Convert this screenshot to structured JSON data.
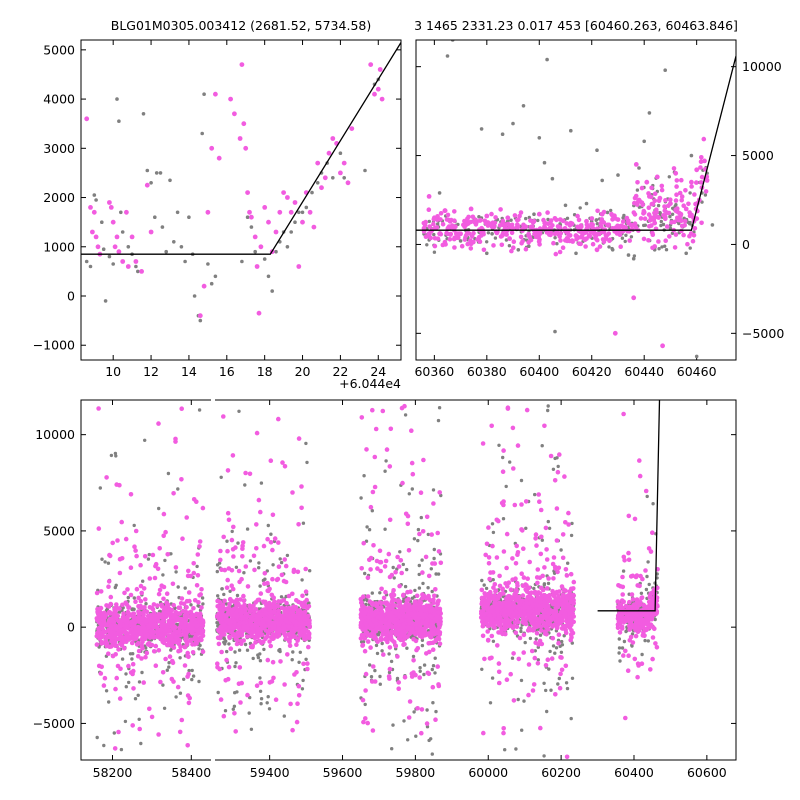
{
  "colors": {
    "grey_points": "#808080",
    "magenta_points": "#f25ce0",
    "model_line": "#000000"
  },
  "chart_data": [
    {
      "name": "phased-zoom",
      "type": "scatter",
      "title": "BLG01M0305.003412 (2681.52, 5734.58)",
      "offset_label": "+6.044e4",
      "xlim": [
        8.3,
        25.2
      ],
      "ylim": [
        -1300,
        5200
      ],
      "xticks": [
        10,
        12,
        14,
        16,
        18,
        20,
        22,
        24
      ],
      "yticks": [
        -1000,
        0,
        1000,
        2000,
        3000,
        4000,
        5000
      ],
      "model_line": {
        "x": [
          8.3,
          18.3,
          25.2
        ],
        "y": [
          850,
          850,
          5150
        ]
      },
      "points_grey": [
        [
          8.6,
          700
        ],
        [
          8.8,
          600
        ],
        [
          9.0,
          2050
        ],
        [
          9.1,
          1950
        ],
        [
          9.4,
          1500
        ],
        [
          9.5,
          950
        ],
        [
          9.6,
          -100
        ],
        [
          9.8,
          800
        ],
        [
          10.0,
          650
        ],
        [
          10.2,
          4000
        ],
        [
          10.3,
          3550
        ],
        [
          10.4,
          1700
        ],
        [
          10.5,
          1300
        ],
        [
          10.8,
          1000
        ],
        [
          11.0,
          850
        ],
        [
          11.2,
          600
        ],
        [
          11.3,
          500
        ],
        [
          11.6,
          3700
        ],
        [
          11.8,
          2550
        ],
        [
          12.0,
          2300
        ],
        [
          12.2,
          1600
        ],
        [
          12.3,
          2500
        ],
        [
          12.5,
          2500
        ],
        [
          12.6,
          1400
        ],
        [
          12.8,
          900
        ],
        [
          13.0,
          2350
        ],
        [
          13.2,
          1100
        ],
        [
          13.4,
          1700
        ],
        [
          13.6,
          1000
        ],
        [
          13.8,
          700
        ],
        [
          14.0,
          1600
        ],
        [
          14.2,
          850
        ],
        [
          14.3,
          0
        ],
        [
          14.5,
          -400
        ],
        [
          14.6,
          -500
        ],
        [
          14.7,
          3300
        ],
        [
          14.8,
          4100
        ],
        [
          15.0,
          650
        ],
        [
          15.2,
          250
        ],
        [
          15.4,
          400
        ],
        [
          16.8,
          700
        ],
        [
          17.1,
          1600
        ],
        [
          17.3,
          1400
        ],
        [
          17.5,
          900
        ],
        [
          17.8,
          1000
        ],
        [
          18.0,
          750
        ],
        [
          18.2,
          400
        ],
        [
          18.4,
          100
        ],
        [
          18.6,
          900
        ],
        [
          18.8,
          1100
        ],
        [
          19.0,
          1300
        ],
        [
          19.2,
          1000
        ],
        [
          19.4,
          1300
        ],
        [
          19.6,
          1500
        ],
        [
          19.8,
          1700
        ],
        [
          20.0,
          1700
        ],
        [
          20.2,
          1800
        ],
        [
          20.5,
          2100
        ],
        [
          20.8,
          2300
        ],
        [
          21.0,
          2500
        ],
        [
          21.3,
          2700
        ],
        [
          21.6,
          2400
        ],
        [
          22.0,
          2900
        ],
        [
          22.2,
          2400
        ],
        [
          23.3,
          2550
        ],
        [
          23.8,
          4300
        ],
        [
          24.0,
          4400
        ]
      ],
      "points_magenta": [
        [
          8.6,
          3600
        ],
        [
          8.8,
          1800
        ],
        [
          8.9,
          1300
        ],
        [
          9.0,
          1700
        ],
        [
          9.1,
          1200
        ],
        [
          9.2,
          1000
        ],
        [
          9.3,
          850
        ],
        [
          9.8,
          1900
        ],
        [
          9.9,
          1800
        ],
        [
          10.0,
          1500
        ],
        [
          10.1,
          1000
        ],
        [
          10.2,
          1200
        ],
        [
          10.3,
          900
        ],
        [
          10.5,
          700
        ],
        [
          10.7,
          1700
        ],
        [
          10.8,
          600
        ],
        [
          11.0,
          1200
        ],
        [
          11.2,
          700
        ],
        [
          11.5,
          500
        ],
        [
          11.8,
          2250
        ],
        [
          12.0,
          1300
        ],
        [
          14.6,
          -400
        ],
        [
          14.8,
          200
        ],
        [
          15.0,
          1700
        ],
        [
          15.2,
          3000
        ],
        [
          15.4,
          4100
        ],
        [
          15.6,
          2800
        ],
        [
          16.2,
          4000
        ],
        [
          16.4,
          3700
        ],
        [
          16.7,
          3200
        ],
        [
          16.8,
          4700
        ],
        [
          16.9,
          3500
        ],
        [
          17.0,
          3000
        ],
        [
          17.1,
          2100
        ],
        [
          17.2,
          1700
        ],
        [
          17.3,
          1600
        ],
        [
          17.5,
          1200
        ],
        [
          17.6,
          600
        ],
        [
          17.7,
          -350
        ],
        [
          17.8,
          1000
        ],
        [
          18.0,
          1800
        ],
        [
          18.2,
          1500
        ],
        [
          18.4,
          900
        ],
        [
          18.6,
          1300
        ],
        [
          18.8,
          1700
        ],
        [
          19.0,
          2100
        ],
        [
          19.2,
          2000
        ],
        [
          19.4,
          1700
        ],
        [
          19.6,
          1900
        ],
        [
          19.8,
          600
        ],
        [
          20.0,
          1500
        ],
        [
          20.2,
          2100
        ],
        [
          20.4,
          1700
        ],
        [
          20.6,
          1400
        ],
        [
          20.8,
          2700
        ],
        [
          21.0,
          2200
        ],
        [
          21.2,
          2400
        ],
        [
          21.4,
          2900
        ],
        [
          21.6,
          3200
        ],
        [
          21.8,
          3100
        ],
        [
          22.0,
          2500
        ],
        [
          22.2,
          2700
        ],
        [
          22.4,
          2300
        ],
        [
          22.6,
          3400
        ],
        [
          23.6,
          4700
        ],
        [
          23.8,
          4100
        ],
        [
          24.0,
          4200
        ],
        [
          24.1,
          4600
        ],
        [
          24.2,
          4000
        ]
      ]
    },
    {
      "name": "season-zoom",
      "type": "scatter",
      "title": "3 1465 2331.23 0.017 453 [60460.263, 60463.846]",
      "xlim": [
        60353,
        60475
      ],
      "ylim": [
        -6500,
        11500
      ],
      "xticks": [
        60360,
        60380,
        60400,
        60420,
        60440,
        60460
      ],
      "yticks": [
        -5000,
        0,
        5000,
        10000
      ],
      "yaxis_side": "right",
      "model_line": {
        "x": [
          60353,
          60458,
          60475
        ],
        "y": [
          800,
          800,
          10600
        ]
      },
      "points_grey": [
        [
          60358,
          500
        ],
        [
          60362,
          2900
        ],
        [
          60365,
          10600
        ],
        [
          60367,
          11500
        ],
        [
          60370,
          200
        ],
        [
          60372,
          800
        ],
        [
          60375,
          1500
        ],
        [
          60378,
          6500
        ],
        [
          60380,
          -500
        ],
        [
          60382,
          600
        ],
        [
          60384,
          1400
        ],
        [
          60386,
          6200
        ],
        [
          60388,
          1300
        ],
        [
          60390,
          6800
        ],
        [
          60392,
          -300
        ],
        [
          60394,
          7800
        ],
        [
          60396,
          -100
        ],
        [
          60398,
          1700
        ],
        [
          60400,
          6000
        ],
        [
          60402,
          4600
        ],
        [
          60403,
          10400
        ],
        [
          60405,
          3700
        ],
        [
          60406,
          -4900
        ],
        [
          60408,
          1100
        ],
        [
          60410,
          2200
        ],
        [
          60412,
          6400
        ],
        [
          60414,
          -500
        ],
        [
          60416,
          1000
        ],
        [
          60418,
          2300
        ],
        [
          60420,
          1300
        ],
        [
          60422,
          5300
        ],
        [
          60424,
          3600
        ],
        [
          60426,
          1800
        ],
        [
          60428,
          -300
        ],
        [
          60430,
          3900
        ],
        [
          60432,
          1500
        ],
        [
          60434,
          -600
        ],
        [
          60436,
          -800
        ],
        [
          60438,
          4300
        ],
        [
          60440,
          5800
        ],
        [
          60442,
          7400
        ],
        [
          60444,
          -300
        ],
        [
          60446,
          1600
        ],
        [
          60448,
          9800
        ],
        [
          60450,
          900
        ],
        [
          60452,
          1300
        ],
        [
          60454,
          1600
        ],
        [
          60456,
          -500
        ],
        [
          60458,
          5000
        ],
        [
          60460,
          -6300
        ],
        [
          60462,
          2900
        ],
        [
          60464,
          4000
        ],
        [
          60466,
          1100
        ]
      ],
      "points_magenta": [
        [
          60356,
          1200
        ],
        [
          60358,
          2700
        ],
        [
          60360,
          1500
        ],
        [
          60362,
          600
        ],
        [
          60364,
          1900
        ],
        [
          60366,
          1300
        ],
        [
          60368,
          1000
        ],
        [
          60370,
          600
        ],
        [
          60372,
          1100
        ],
        [
          60374,
          2000
        ],
        [
          60376,
          1300
        ],
        [
          60378,
          900
        ],
        [
          60380,
          1600
        ],
        [
          60382,
          1000
        ],
        [
          60384,
          700
        ],
        [
          60386,
          1200
        ],
        [
          60388,
          1500
        ],
        [
          60390,
          900
        ],
        [
          60392,
          1400
        ],
        [
          60394,
          1100
        ],
        [
          60396,
          500
        ],
        [
          60398,
          1300
        ],
        [
          60400,
          1700
        ],
        [
          60402,
          1000
        ],
        [
          60404,
          900
        ],
        [
          60406,
          600
        ],
        [
          60408,
          1400
        ],
        [
          60410,
          800
        ],
        [
          60412,
          1200
        ],
        [
          60414,
          500
        ],
        [
          60416,
          1000
        ],
        [
          60418,
          1300
        ],
        [
          60420,
          700
        ],
        [
          60422,
          -300
        ],
        [
          60424,
          1700
        ],
        [
          60426,
          1100
        ],
        [
          60428,
          900
        ],
        [
          60429,
          -5000
        ],
        [
          60430,
          1400
        ],
        [
          60432,
          800
        ],
        [
          60434,
          1200
        ],
        [
          60436,
          -3000
        ],
        [
          60437,
          4500
        ],
        [
          60438,
          2500
        ],
        [
          60440,
          1800
        ],
        [
          60441,
          3500
        ],
        [
          60442,
          2700
        ],
        [
          60444,
          1200
        ],
        [
          60445,
          3800
        ],
        [
          60446,
          2600
        ],
        [
          60447,
          -5700
        ],
        [
          60448,
          1500
        ],
        [
          60450,
          2300
        ],
        [
          60452,
          4000
        ],
        [
          60454,
          1700
        ],
        [
          60456,
          2000
        ],
        [
          60458,
          3500
        ],
        [
          60459,
          1300
        ],
        [
          60460,
          4200
        ],
        [
          60461,
          2500
        ],
        [
          60462,
          3200
        ],
        [
          60463,
          4700
        ],
        [
          60464,
          3600
        ]
      ]
    },
    {
      "name": "full-lightcurve",
      "type": "scatter",
      "xlim": [
        58120,
        60680
      ],
      "ylim": [
        -6900,
        11800
      ],
      "xticks": [
        58200,
        58400,
        59400,
        59600,
        59800,
        60000,
        60200,
        60400,
        60600
      ],
      "yticks": [
        -5000,
        0,
        5000,
        10000
      ],
      "broken_axis": {
        "gap_after": 58450,
        "gap_before": 59250
      },
      "model_line": {
        "x": [
          60300,
          60458,
          60470
        ],
        "y": [
          850,
          850,
          11800
        ]
      },
      "seasons": [
        {
          "x0": 58160,
          "x1": 58430,
          "center": 0,
          "spread": 1000,
          "outlier_range": [
            -6500,
            11500
          ]
        },
        {
          "x0": 59255,
          "x1": 59510,
          "center": 300,
          "spread": 900,
          "outlier_range": [
            -5500,
            11500
          ]
        },
        {
          "x0": 59650,
          "x1": 59870,
          "center": 400,
          "spread": 1000,
          "outlier_range": [
            -6000,
            11500
          ]
        },
        {
          "x0": 59980,
          "x1": 60235,
          "center": 900,
          "spread": 1000,
          "outlier_range": [
            -6700,
            11500
          ]
        },
        {
          "x0": 60355,
          "x1": 60465,
          "center": 600,
          "spread": 700,
          "outlier_range": [
            -6600,
            11500
          ]
        }
      ]
    }
  ]
}
